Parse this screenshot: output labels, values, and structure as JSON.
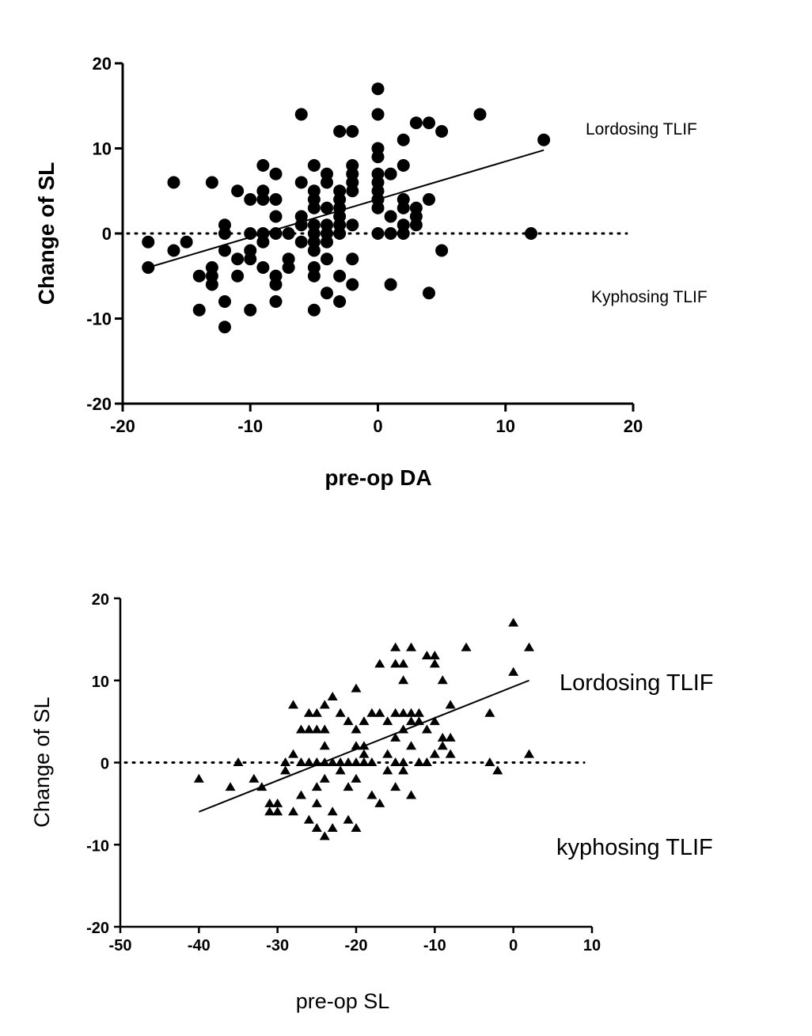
{
  "chart_data": [
    {
      "type": "scatter",
      "xlabel": "pre-op DA",
      "ylabel": "Change of SL",
      "xlim": [
        -20,
        20
      ],
      "ylim": [
        -20,
        20
      ],
      "xticks": [
        -20,
        -10,
        0,
        10,
        20
      ],
      "yticks": [
        -20,
        -10,
        0,
        10,
        20
      ],
      "marker": "circle",
      "annotations": [
        "Lordosing TLIF",
        "Kyphosing TLIF"
      ],
      "reference_line_y": 0,
      "regression_line": [
        [
          -18,
          -4
        ],
        [
          13,
          9.8
        ]
      ],
      "points": [
        [
          -18,
          -1
        ],
        [
          -18,
          -4
        ],
        [
          -16,
          6
        ],
        [
          -16,
          -2
        ],
        [
          -15,
          -1
        ],
        [
          -14,
          -5
        ],
        [
          -14,
          -9
        ],
        [
          -13,
          6
        ],
        [
          -13,
          -4
        ],
        [
          -13,
          -5
        ],
        [
          -13,
          -6
        ],
        [
          -12,
          1
        ],
        [
          -12,
          0
        ],
        [
          -12,
          -2
        ],
        [
          -12,
          -8
        ],
        [
          -12,
          -11
        ],
        [
          -11,
          5
        ],
        [
          -11,
          -3
        ],
        [
          -11,
          -5
        ],
        [
          -10,
          4
        ],
        [
          -10,
          0
        ],
        [
          -10,
          -2
        ],
        [
          -10,
          -3
        ],
        [
          -10,
          -9
        ],
        [
          -9,
          8
        ],
        [
          -9,
          5
        ],
        [
          -9,
          4
        ],
        [
          -9,
          0
        ],
        [
          -9,
          -1
        ],
        [
          -9,
          -4
        ],
        [
          -8,
          7
        ],
        [
          -8,
          4
        ],
        [
          -8,
          2
        ],
        [
          -8,
          0
        ],
        [
          -8,
          -5
        ],
        [
          -8,
          -6
        ],
        [
          -8,
          -8
        ],
        [
          -7,
          0
        ],
        [
          -7,
          -3
        ],
        [
          -7,
          -4
        ],
        [
          -6,
          14
        ],
        [
          -6,
          6
        ],
        [
          -6,
          2
        ],
        [
          -6,
          1
        ],
        [
          -6,
          -1
        ],
        [
          -5,
          8
        ],
        [
          -5,
          5
        ],
        [
          -5,
          4
        ],
        [
          -5,
          3
        ],
        [
          -5,
          1
        ],
        [
          -5,
          0
        ],
        [
          -5,
          -1
        ],
        [
          -5,
          -2
        ],
        [
          -5,
          -4
        ],
        [
          -5,
          -5
        ],
        [
          -5,
          -9
        ],
        [
          -4,
          7
        ],
        [
          -4,
          6
        ],
        [
          -4,
          3
        ],
        [
          -4,
          1
        ],
        [
          -4,
          0
        ],
        [
          -4,
          -1
        ],
        [
          -4,
          -3
        ],
        [
          -4,
          -7
        ],
        [
          -3,
          12
        ],
        [
          -3,
          5
        ],
        [
          -3,
          4
        ],
        [
          -3,
          3
        ],
        [
          -3,
          2
        ],
        [
          -3,
          1
        ],
        [
          -3,
          0
        ],
        [
          -3,
          -5
        ],
        [
          -3,
          -8
        ],
        [
          -2,
          12
        ],
        [
          -2,
          8
        ],
        [
          -2,
          7
        ],
        [
          -2,
          6
        ],
        [
          -2,
          5
        ],
        [
          -2,
          1
        ],
        [
          -2,
          -3
        ],
        [
          -2,
          -6
        ],
        [
          0,
          17
        ],
        [
          0,
          14
        ],
        [
          0,
          10
        ],
        [
          0,
          9
        ],
        [
          0,
          7
        ],
        [
          0,
          6
        ],
        [
          0,
          5
        ],
        [
          0,
          4
        ],
        [
          0,
          3
        ],
        [
          0,
          0
        ],
        [
          1,
          7
        ],
        [
          1,
          2
        ],
        [
          1,
          0
        ],
        [
          1,
          -6
        ],
        [
          2,
          11
        ],
        [
          2,
          8
        ],
        [
          2,
          4
        ],
        [
          2,
          3
        ],
        [
          2,
          1
        ],
        [
          2,
          0
        ],
        [
          3,
          13
        ],
        [
          3,
          3
        ],
        [
          3,
          2
        ],
        [
          3,
          1
        ],
        [
          4,
          13
        ],
        [
          4,
          4
        ],
        [
          4,
          -7
        ],
        [
          5,
          12
        ],
        [
          5,
          -2
        ],
        [
          8,
          14
        ],
        [
          12,
          0
        ],
        [
          13,
          11
        ]
      ]
    },
    {
      "type": "scatter",
      "xlabel": "pre-op SL",
      "ylabel": "Change of SL",
      "xlim": [
        -50,
        10
      ],
      "ylim": [
        -20,
        20
      ],
      "xticks": [
        -50,
        -40,
        -30,
        -20,
        -10,
        0,
        10
      ],
      "yticks": [
        -20,
        -10,
        0,
        10,
        20
      ],
      "marker": "triangle",
      "annotations": [
        "Lordosing TLIF",
        "kyphosing TLIF"
      ],
      "reference_line_y": 0,
      "regression_line": [
        [
          -40,
          -6
        ],
        [
          2,
          10
        ]
      ],
      "points": [
        [
          -40,
          -2
        ],
        [
          -36,
          -3
        ],
        [
          -35,
          0
        ],
        [
          -33,
          -2
        ],
        [
          -32,
          -3
        ],
        [
          -31,
          -5
        ],
        [
          -31,
          -6
        ],
        [
          -30,
          -5
        ],
        [
          -30,
          -6
        ],
        [
          -29,
          -1
        ],
        [
          -29,
          0
        ],
        [
          -28,
          7
        ],
        [
          -28,
          -6
        ],
        [
          -28,
          1
        ],
        [
          -27,
          4
        ],
        [
          -27,
          -4
        ],
        [
          -27,
          0
        ],
        [
          -26,
          6
        ],
        [
          -26,
          4
        ],
        [
          -26,
          0
        ],
        [
          -26,
          -7
        ],
        [
          -25,
          6
        ],
        [
          -25,
          4
        ],
        [
          -25,
          0
        ],
        [
          -25,
          -3
        ],
        [
          -25,
          -5
        ],
        [
          -25,
          -8
        ],
        [
          -24,
          7
        ],
        [
          -24,
          4
        ],
        [
          -24,
          2
        ],
        [
          -24,
          0
        ],
        [
          -24,
          -2
        ],
        [
          -24,
          -9
        ],
        [
          -23,
          8
        ],
        [
          -23,
          0
        ],
        [
          -23,
          -6
        ],
        [
          -23,
          -8
        ],
        [
          -22,
          6
        ],
        [
          -22,
          0
        ],
        [
          -22,
          -1
        ],
        [
          -21,
          5
        ],
        [
          -21,
          0
        ],
        [
          -21,
          -3
        ],
        [
          -21,
          -7
        ],
        [
          -20,
          9
        ],
        [
          -20,
          4
        ],
        [
          -20,
          2
        ],
        [
          -20,
          0
        ],
        [
          -20,
          -2
        ],
        [
          -20,
          -8
        ],
        [
          -19,
          5
        ],
        [
          -19,
          2
        ],
        [
          -19,
          1
        ],
        [
          -19,
          0
        ],
        [
          -18,
          6
        ],
        [
          -18,
          0
        ],
        [
          -18,
          -4
        ],
        [
          -17,
          6
        ],
        [
          -17,
          12
        ],
        [
          -17,
          -5
        ],
        [
          -16,
          5
        ],
        [
          -16,
          1
        ],
        [
          -16,
          -1
        ],
        [
          -15,
          14
        ],
        [
          -15,
          12
        ],
        [
          -15,
          6
        ],
        [
          -15,
          3
        ],
        [
          -15,
          0
        ],
        [
          -15,
          -3
        ],
        [
          -14,
          12
        ],
        [
          -14,
          10
        ],
        [
          -14,
          6
        ],
        [
          -14,
          4
        ],
        [
          -14,
          0
        ],
        [
          -14,
          -1
        ],
        [
          -13,
          14
        ],
        [
          -13,
          6
        ],
        [
          -13,
          5
        ],
        [
          -13,
          2
        ],
        [
          -13,
          -4
        ],
        [
          -12,
          6
        ],
        [
          -12,
          5
        ],
        [
          -12,
          0
        ],
        [
          -11,
          13
        ],
        [
          -11,
          4
        ],
        [
          -11,
          0
        ],
        [
          -10,
          13
        ],
        [
          -10,
          12
        ],
        [
          -10,
          5
        ],
        [
          -10,
          1
        ],
        [
          -9,
          10
        ],
        [
          -9,
          3
        ],
        [
          -9,
          2
        ],
        [
          -8,
          7
        ],
        [
          -8,
          3
        ],
        [
          -8,
          1
        ],
        [
          -6,
          14
        ],
        [
          -3,
          6
        ],
        [
          -3,
          0
        ],
        [
          -2,
          -1
        ],
        [
          0,
          17
        ],
        [
          0,
          11
        ],
        [
          2,
          14
        ],
        [
          2,
          1
        ]
      ]
    }
  ]
}
